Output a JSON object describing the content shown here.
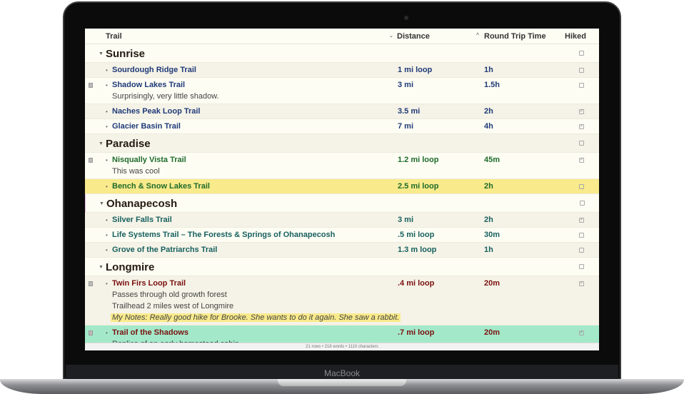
{
  "device": {
    "brand": "MacBook"
  },
  "columns": {
    "trail": "Trail",
    "distance": "Distance",
    "time": "Round Trip Time",
    "hiked": "Hiked"
  },
  "groups": [
    {
      "name": "Sunrise",
      "color": "#1f3a78",
      "rows": [
        {
          "trail": "Sourdough Ridge Trail",
          "distance": "1 mi loop",
          "time": "1h",
          "hiked": false,
          "notes": []
        },
        {
          "trail": "Shadow Lakes Trail",
          "distance": "3 mi",
          "time": "1.5h",
          "hiked": false,
          "notes": [
            "Surprisingly, very little shadow."
          ]
        },
        {
          "trail": "Naches Peak Loop Trail",
          "distance": "3.5 mi",
          "time": "2h",
          "hiked": true,
          "notes": []
        },
        {
          "trail": "Glacier Basin Trail",
          "distance": "7 mi",
          "time": "4h",
          "hiked": true,
          "notes": []
        }
      ]
    },
    {
      "name": "Paradise",
      "color": "#1f6b2a",
      "rows": [
        {
          "trail": "Nisqually Vista Trail",
          "distance": "1.2 mi loop",
          "time": "45m",
          "hiked": true,
          "notes": [
            "This was cool"
          ]
        },
        {
          "trail": "Bench & Snow Lakes Trail",
          "distance": "2.5 mi loop",
          "time": "2h",
          "hiked": false,
          "notes": [],
          "highlight": "#f9ea8b"
        }
      ]
    },
    {
      "name": "Ohanapecosh",
      "color": "#17605f",
      "rows": [
        {
          "trail": "Silver Falls Trail",
          "distance": "3 mi",
          "time": "2h",
          "hiked": true,
          "notes": []
        },
        {
          "trail": "Life Systems Trail – The Forests & Springs of Ohanapecosh",
          "distance": ".5 mi loop",
          "time": "30m",
          "hiked": false,
          "notes": []
        },
        {
          "trail": "Grove of the Patriarchs Trail",
          "distance": "1.3 m loop",
          "time": "1h",
          "hiked": false,
          "notes": []
        }
      ]
    },
    {
      "name": "Longmire",
      "color": "#7a1010",
      "rows": [
        {
          "trail": "Twin Firs Loop Trail",
          "distance": ".4 mi loop",
          "time": "20m",
          "hiked": true,
          "notes": [
            "Passes through old growth forest",
            "Trailhead 2 miles west of Longmire"
          ],
          "highlighted_note": "My Notes: Really good hike for Brooke. She wants to do it again. She saw a rabbit."
        },
        {
          "trail": "Trail of the Shadows",
          "distance": ".7 mi loop",
          "time": "20m",
          "hiked": true,
          "notes": [
            "Replica of an early homestead cabin"
          ],
          "highlight": "#a3e9c9"
        }
      ]
    }
  ],
  "status": "21 rows • 218 words • 1110 characters"
}
